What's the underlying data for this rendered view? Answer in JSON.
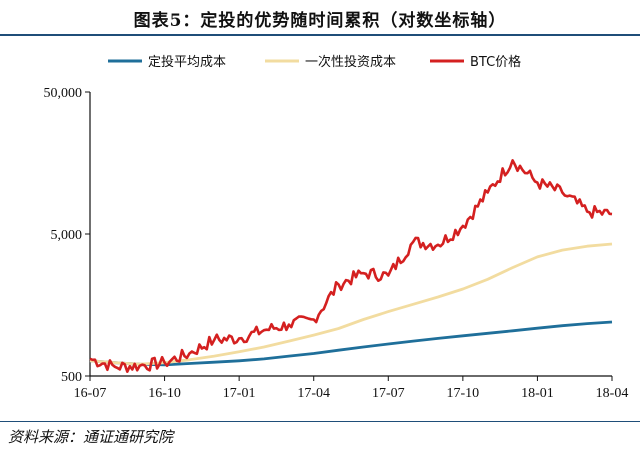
{
  "title": "图表5：定投的优势随时间累积（对数坐标轴）",
  "source": "资料来源：通证通研究院",
  "chart_data": {
    "type": "line",
    "title": "图表5：定投的优势随时间累积（对数坐标轴）",
    "xlabel": "",
    "ylabel": "",
    "y_scale": "log",
    "ylim": [
      500,
      50000
    ],
    "y_ticks": [
      {
        "value": 500,
        "label": "500"
      },
      {
        "value": 5000,
        "label": "5,000"
      },
      {
        "value": 50000,
        "label": "50,000"
      }
    ],
    "x_ticks": [
      "16-07",
      "16-10",
      "17-01",
      "17-04",
      "17-07",
      "17-10",
      "18-01",
      "18-04"
    ],
    "grid": false,
    "legend_position": "top",
    "x": [
      "16-07",
      "16-08",
      "16-09",
      "16-10",
      "16-11",
      "16-12",
      "17-01",
      "17-02",
      "17-03",
      "17-04",
      "17-05",
      "17-06",
      "17-07",
      "17-08",
      "17-09",
      "17-10",
      "17-11",
      "17-12",
      "18-01",
      "18-02",
      "18-03",
      "18-04"
    ],
    "series": [
      {
        "name": "定投平均成本",
        "color": "#1f6f9a",
        "values": [
          640,
          620,
          605,
          600,
          612,
          625,
          640,
          660,
          690,
          720,
          760,
          800,
          840,
          880,
          920,
          960,
          1000,
          1040,
          1085,
          1130,
          1170,
          1200
        ]
      },
      {
        "name": "一次性投资成本",
        "color": "#f2dca0",
        "values": [
          640,
          620,
          605,
          620,
          650,
          690,
          740,
          800,
          880,
          970,
          1080,
          1250,
          1420,
          1600,
          1800,
          2050,
          2400,
          2900,
          3450,
          3850,
          4100,
          4250
        ]
      },
      {
        "name": "BTC价格",
        "color": "#d42020",
        "values": [
          660,
          580,
          590,
          620,
          720,
          900,
          920,
          1050,
          1150,
          1250,
          2200,
          2650,
          2550,
          4400,
          4200,
          5700,
          9800,
          16500,
          11500,
          9800,
          7200,
          6900
        ]
      }
    ]
  }
}
